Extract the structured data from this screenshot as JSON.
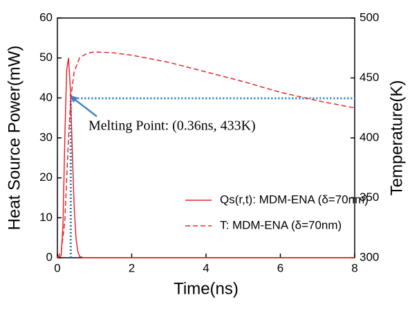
{
  "chart_data": {
    "type": "line",
    "x_label": "Time(ns)",
    "y_label": "Heat Source Power(mW)",
    "y2_label": "Temperature(K)",
    "xlim": [
      0,
      8
    ],
    "xticks": [
      0,
      2,
      4,
      6,
      8
    ],
    "ylim": [
      0,
      60
    ],
    "yticks": [
      0,
      10,
      20,
      30,
      40,
      50,
      60
    ],
    "y2lim": [
      300,
      500
    ],
    "y2ticks": [
      300,
      350,
      400,
      450,
      500
    ],
    "series": [
      {
        "name": "Qs(r,t): MDM-ENA (δ=70nm)",
        "color": "#e8262a",
        "dash": "solid",
        "x": [
          0,
          0.1,
          0.15,
          0.2,
          0.25,
          0.3,
          0.35,
          0.4,
          0.45,
          0.5,
          0.55,
          0.6,
          0.7,
          8
        ],
        "values": [
          0,
          0.5,
          8,
          30,
          47,
          50,
          42,
          27,
          13,
          5,
          1.5,
          0.3,
          0,
          0
        ]
      },
      {
        "name": "T: MDM-ENA (δ=70nm)",
        "color": "#e8262a",
        "dash": "dashed",
        "axis": "y2",
        "x": [
          0,
          0.1,
          0.2,
          0.3,
          0.36,
          0.45,
          0.6,
          0.8,
          1,
          1.5,
          2,
          3,
          4,
          5,
          6,
          7,
          8
        ],
        "values": [
          300,
          305,
          330,
          400,
          433,
          455,
          467,
          470.5,
          471.7,
          471,
          469,
          463,
          455,
          447,
          438,
          431,
          425
        ]
      }
    ],
    "reference_lines": {
      "x": 0.36,
      "y2": 433,
      "color": "#1f7fc9"
    },
    "annotation": "Melting Point: (0.36ns, 433K)",
    "legend": "lower right"
  }
}
